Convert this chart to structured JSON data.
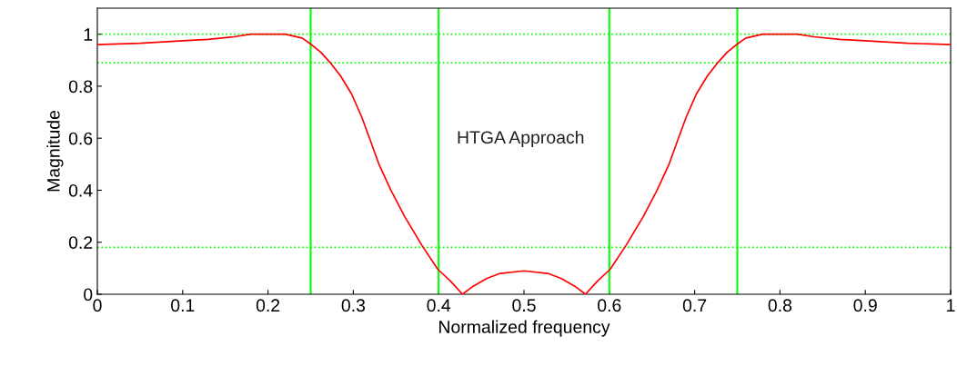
{
  "chart_data": {
    "type": "line",
    "xlabel": "Normalized frequency",
    "ylabel": "Magnitude",
    "annotations": [
      "HTGA Approach"
    ],
    "series": [
      {
        "color": "#ff0000",
        "x": [
          0,
          0.05,
          0.1,
          0.13,
          0.16,
          0.18,
          0.2,
          0.22,
          0.24,
          0.25,
          0.262,
          0.273,
          0.285,
          0.298,
          0.31,
          0.319,
          0.33,
          0.344,
          0.36,
          0.38,
          0.399,
          0.414,
          0.428,
          0.44,
          0.456,
          0.472,
          0.5,
          0.528,
          0.544,
          0.56,
          0.572,
          0.586,
          0.601,
          0.62,
          0.64,
          0.656,
          0.67,
          0.681,
          0.69,
          0.702,
          0.715,
          0.727,
          0.738,
          0.75,
          0.76,
          0.78,
          0.8,
          0.82,
          0.84,
          0.87,
          0.9,
          0.95,
          1
        ],
        "values": [
          0.96,
          0.965,
          0.975,
          0.98,
          0.99,
          1.0,
          1.0,
          1.0,
          0.985,
          0.962,
          0.93,
          0.89,
          0.84,
          0.77,
          0.68,
          0.6,
          0.5,
          0.4,
          0.3,
          0.19,
          0.096,
          0.05,
          0.0,
          0.03,
          0.06,
          0.08,
          0.09,
          0.08,
          0.06,
          0.03,
          0.0,
          0.05,
          0.096,
          0.19,
          0.3,
          0.4,
          0.5,
          0.6,
          0.68,
          0.77,
          0.84,
          0.89,
          0.93,
          0.962,
          0.985,
          1.0,
          1.0,
          1.0,
          0.99,
          0.98,
          0.975,
          0.965,
          0.96
        ]
      }
    ],
    "xlim": [
      0,
      1
    ],
    "ylim": [
      0,
      1.1
    ],
    "xticks": [
      0,
      0.1,
      0.2,
      0.3,
      0.4,
      0.5,
      0.6,
      0.7,
      0.8,
      0.9,
      1
    ],
    "yticks": [
      0,
      0.2,
      0.4,
      0.6,
      0.8,
      1
    ],
    "ref_lines": [
      {
        "axis": "y",
        "value": 1.0,
        "color": "#00ff00",
        "line_style": "dotted"
      },
      {
        "axis": "y",
        "value": 0.89,
        "color": "#00ff00",
        "line_style": "dotted"
      },
      {
        "axis": "y",
        "value": 0.18,
        "color": "#00ff00",
        "line_style": "dotted"
      },
      {
        "axis": "x",
        "value": 0.25,
        "color": "#00ff00",
        "line_style": "solid"
      },
      {
        "axis": "x",
        "value": 0.4,
        "color": "#00ff00",
        "line_style": "solid"
      },
      {
        "axis": "x",
        "value": 0.6,
        "color": "#00ff00",
        "line_style": "solid"
      },
      {
        "axis": "x",
        "value": 0.75,
        "color": "#00ff00",
        "line_style": "solid"
      }
    ]
  }
}
